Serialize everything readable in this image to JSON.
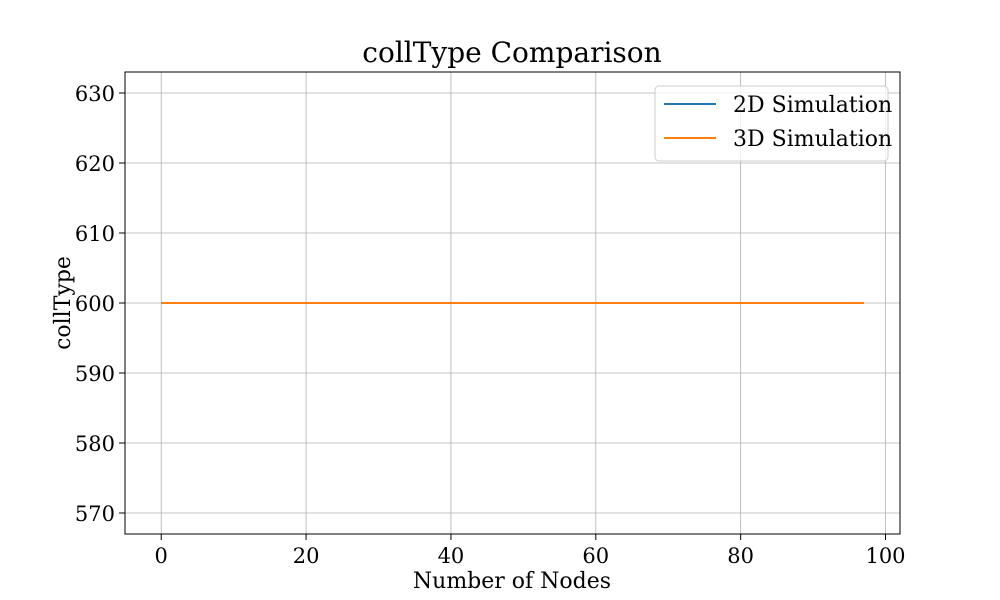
{
  "chart_data": {
    "type": "line",
    "title": "collType Comparison",
    "xlabel": "Number of Nodes",
    "ylabel": "collType",
    "xlim": [
      -5,
      102
    ],
    "ylim": [
      567,
      633
    ],
    "xticks": [
      0,
      20,
      40,
      60,
      80,
      100
    ],
    "yticks": [
      570,
      580,
      590,
      600,
      610,
      620,
      630
    ],
    "grid": true,
    "legend_position": "top-right",
    "series": [
      {
        "name": "2D Simulation",
        "color": "#1f77b4",
        "x": [
          0,
          97
        ],
        "y": [
          600,
          600
        ]
      },
      {
        "name": "3D Simulation",
        "color": "#ff7f0e",
        "x": [
          0,
          97
        ],
        "y": [
          600,
          600
        ]
      }
    ]
  }
}
